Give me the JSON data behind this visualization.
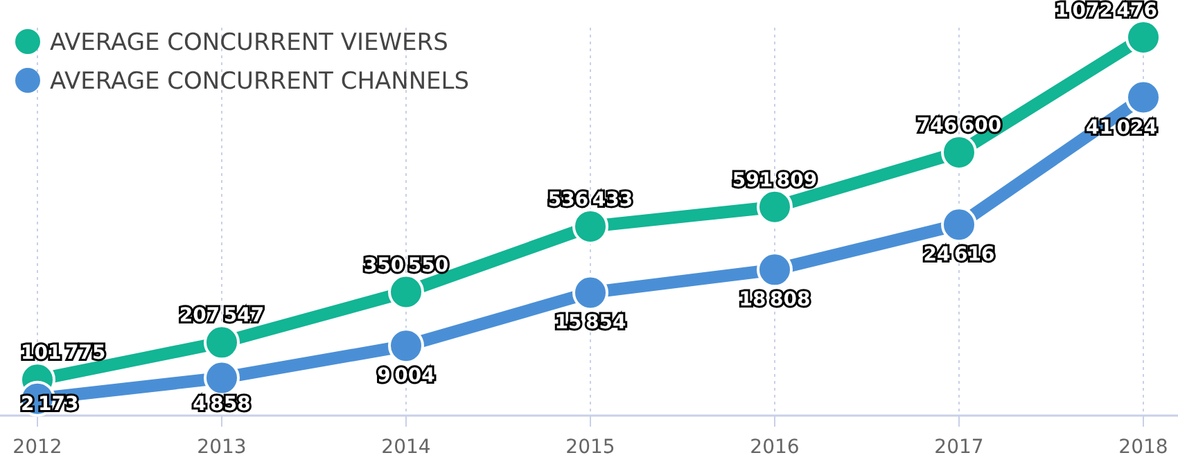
{
  "chart_data": {
    "type": "line",
    "categories": [
      "2012",
      "2013",
      "2014",
      "2015",
      "2016",
      "2017",
      "2018"
    ],
    "series": [
      {
        "name": "AVERAGE CONCURRENT VIEWERS",
        "color": "#12b594",
        "values": [
          101775,
          207547,
          350550,
          536433,
          591809,
          746600,
          1072476
        ]
      },
      {
        "name": "AVERAGE CONCURRENT CHANNELS",
        "color": "#4a8fd6",
        "axis": "y2",
        "values": [
          2173,
          4858,
          9004,
          15854,
          18808,
          24616,
          41024
        ]
      }
    ],
    "ylim": [
      0,
      1100000
    ],
    "y2lim": [
      0,
      50000
    ],
    "tick_labels": "x",
    "grid": "x",
    "legend": "top left",
    "marker": "circle",
    "line_style": "solid",
    "data_labels": true
  }
}
